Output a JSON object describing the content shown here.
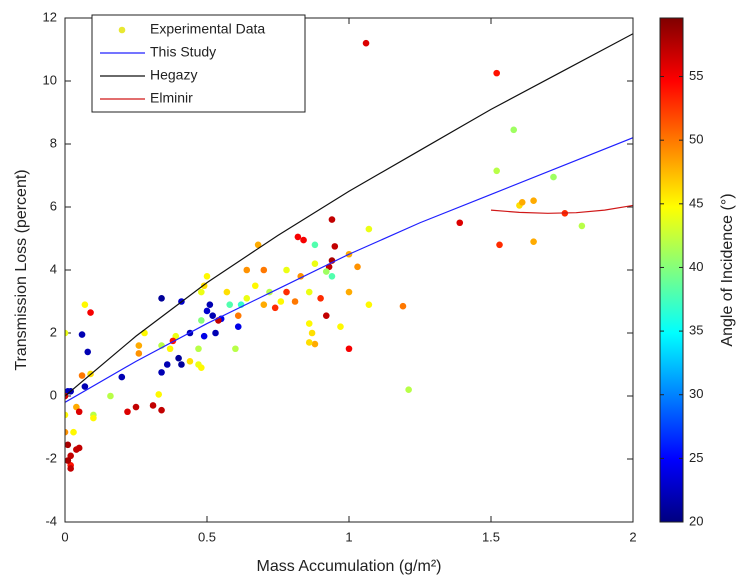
{
  "chart_data": {
    "type": "scatter",
    "xlabel": "Mass Accumulation (g/m²)",
    "ylabel": "Transmission Loss (percent)",
    "xlim": [
      0,
      2
    ],
    "xticks": [
      0,
      0.5,
      1,
      1.5,
      2
    ],
    "ylim": [
      -4,
      12
    ],
    "yticks": [
      -4,
      -2,
      0,
      2,
      4,
      6,
      8,
      10,
      12
    ],
    "legend": "upper left",
    "colorbar": {
      "label": "Angle of Incidence (°)",
      "colormap": "jet",
      "lim": [
        20,
        59.6
      ],
      "ticks": [
        20,
        25,
        30,
        35,
        40,
        45,
        50,
        55
      ]
    },
    "series": [
      {
        "name": "Experimental Data",
        "type": "scatter",
        "color": "#e8e832",
        "x": [
          1.06,
          1.52,
          1.58,
          1.52,
          1.72,
          1.6,
          1.61,
          1.65,
          1.76,
          1.82,
          1.65,
          1.53,
          1.39,
          1.21,
          1.19,
          1.07,
          1.07,
          1.03,
          1.0,
          1.0,
          1.0,
          0.97,
          0.94,
          0.95,
          0.94,
          0.93,
          0.94,
          0.92,
          0.92,
          0.9,
          0.88,
          0.88,
          0.87,
          0.88,
          0.86,
          0.86,
          0.86,
          0.84,
          0.83,
          0.82,
          0.81,
          0.78,
          0.78,
          0.76,
          0.72,
          0.74,
          0.7,
          0.68,
          0.7,
          0.67,
          0.64,
          0.64,
          0.62,
          0.61,
          0.61,
          0.6,
          0.58,
          0.57,
          0.55,
          0.54,
          0.53,
          0.52,
          0.51,
          0.5,
          0.5,
          0.49,
          0.48,
          0.48,
          0.49,
          0.47,
          0.47,
          0.48,
          0.44,
          0.44,
          0.41,
          0.41,
          0.4,
          0.39,
          0.38,
          0.37,
          0.36,
          0.34,
          0.34,
          0.34,
          0.33,
          0.34,
          0.31,
          0.28,
          0.26,
          0.26,
          0.25,
          0.22,
          0.2,
          0.16,
          0.09,
          0.07,
          0.08,
          0.06,
          0.06,
          0.09,
          0.1,
          0.1,
          0.07,
          0.04,
          0.05,
          0.03,
          0.04,
          0.05,
          0.02,
          0.02,
          0.02,
          0.01,
          0.01,
          0.0,
          0.0,
          0.01,
          0.02,
          0.0,
          0.0
        ],
        "y": [
          11.2,
          10.25,
          8.45,
          7.15,
          6.95,
          6.05,
          6.15,
          6.2,
          5.8,
          5.4,
          4.9,
          4.8,
          5.5,
          0.2,
          2.85,
          5.3,
          2.9,
          4.1,
          4.5,
          3.3,
          1.5,
          2.2,
          5.6,
          4.75,
          4.3,
          4.1,
          3.8,
          3.95,
          2.55,
          3.1,
          4.8,
          4.2,
          2.0,
          1.65,
          3.3,
          2.3,
          1.7,
          4.95,
          3.8,
          5.05,
          3.0,
          4.0,
          3.3,
          3.0,
          3.3,
          2.8,
          2.9,
          4.8,
          4.0,
          3.5,
          4.0,
          3.1,
          2.9,
          2.55,
          2.2,
          1.5,
          2.9,
          3.3,
          2.45,
          2.4,
          2.0,
          2.55,
          2.9,
          2.7,
          3.8,
          3.5,
          3.3,
          2.4,
          1.9,
          1.5,
          1.0,
          0.9,
          1.1,
          2.0,
          3.0,
          1.0,
          1.2,
          1.9,
          1.75,
          1.5,
          1.0,
          3.1,
          1.6,
          0.75,
          0.05,
          -0.45,
          -0.3,
          2.0,
          1.6,
          1.35,
          -0.35,
          -0.5,
          0.6,
          0.0,
          2.65,
          2.9,
          1.4,
          1.95,
          0.65,
          0.7,
          -0.6,
          -0.7,
          0.3,
          -0.35,
          -0.5,
          -1.15,
          -1.7,
          -1.65,
          -1.9,
          -2.2,
          -2.3,
          -2.05,
          -1.55,
          -1.15,
          2.0,
          0.15,
          0.15,
          -0.6,
          0.0
        ],
        "c": [
          56,
          54,
          41,
          42,
          41,
          46,
          48,
          48,
          53,
          42,
          48,
          53,
          56,
          42,
          50,
          44,
          45,
          49,
          48,
          48,
          55,
          45,
          57,
          57,
          58,
          57,
          38,
          41,
          57,
          53,
          38,
          44,
          46,
          48,
          44,
          45,
          46,
          55,
          49,
          55,
          50,
          44,
          53,
          45,
          42,
          53,
          48,
          48,
          50,
          45,
          49,
          44,
          37,
          50,
          24,
          42,
          38,
          46,
          24,
          57,
          22,
          22,
          22,
          23,
          45,
          46,
          44,
          40,
          24,
          42,
          44,
          45,
          46,
          22,
          23,
          21,
          21,
          44,
          54,
          45,
          22,
          21,
          42,
          22,
          45,
          57,
          57,
          45,
          48,
          49,
          57,
          56,
          22,
          42,
          55,
          45,
          22,
          22,
          50,
          46,
          42,
          45,
          22,
          48,
          56,
          45,
          57,
          57,
          57,
          54,
          57,
          58,
          58,
          49,
          44,
          23,
          22,
          45,
          56
        ]
      },
      {
        "name": "This Study",
        "type": "line",
        "color": "#2020ff",
        "x": [
          0,
          0.25,
          0.5,
          0.75,
          1,
          1.25,
          1.5,
          1.75,
          2
        ],
        "y": [
          -0.2,
          1.1,
          2.3,
          3.4,
          4.5,
          5.5,
          6.4,
          7.3,
          8.2
        ]
      },
      {
        "name": "Hegazy",
        "type": "line",
        "color": "#111111",
        "x": [
          0,
          0.25,
          0.5,
          0.75,
          1,
          1.25,
          1.5,
          1.75,
          2
        ],
        "y": [
          0,
          1.9,
          3.6,
          5.1,
          6.5,
          7.8,
          9.1,
          10.3,
          11.5
        ]
      },
      {
        "name": "Elminir",
        "type": "line",
        "color": "#d01818",
        "x": [
          1.5,
          1.6,
          1.7,
          1.8,
          1.9,
          2
        ],
        "y": [
          5.9,
          5.83,
          5.8,
          5.82,
          5.9,
          6.05
        ]
      }
    ]
  }
}
